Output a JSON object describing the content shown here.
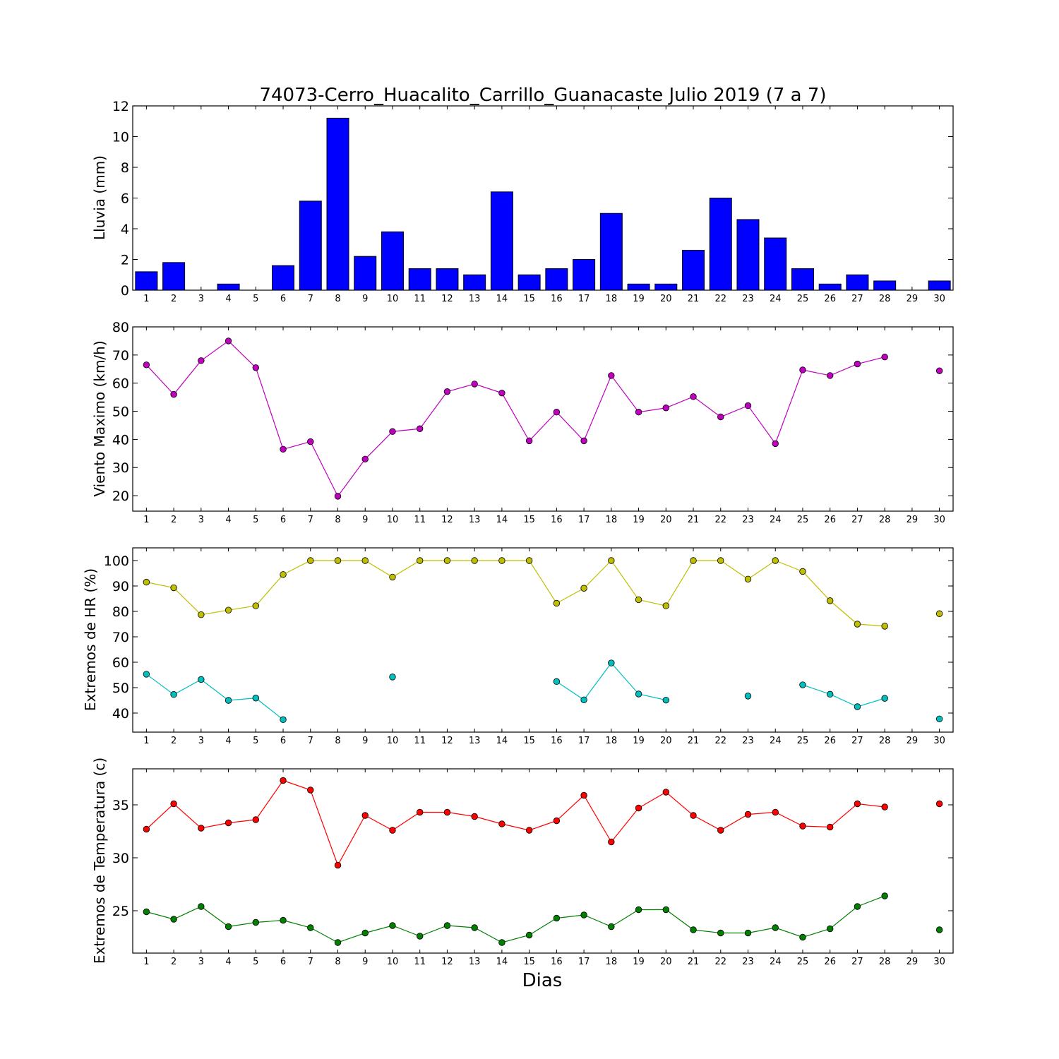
{
  "chart_data": [
    {
      "type": "bar",
      "title": "74073-Cerro_Huacalito_Carrillo_Guanacaste Julio 2019  (7 a 7)",
      "xlabel": "",
      "ylabel": "Lluvia (mm)",
      "categories": [
        "1",
        "2",
        "3",
        "4",
        "5",
        "6",
        "7",
        "8",
        "9",
        "10",
        "11",
        "12",
        "13",
        "14",
        "15",
        "16",
        "17",
        "18",
        "19",
        "20",
        "21",
        "22",
        "23",
        "24",
        "25",
        "26",
        "27",
        "28",
        "29",
        "30"
      ],
      "values": [
        1.2,
        1.8,
        0,
        0.4,
        0,
        1.6,
        5.8,
        11.2,
        2.2,
        3.8,
        1.4,
        1.4,
        1.0,
        6.4,
        1.0,
        1.4,
        2.0,
        5.0,
        0.4,
        0.4,
        2.6,
        6.0,
        4.6,
        3.4,
        1.4,
        0.4,
        1.0,
        0.6,
        0,
        0.6
      ],
      "ylim": [
        0,
        12
      ],
      "yticks": [
        0,
        2,
        4,
        6,
        8,
        10,
        12
      ],
      "colors": {
        "bar": "#0000ff"
      },
      "grid": false
    },
    {
      "type": "line",
      "xlabel": "",
      "ylabel": "Viento Maximo (km/h)",
      "x": [
        1,
        2,
        3,
        4,
        5,
        6,
        7,
        8,
        9,
        10,
        11,
        12,
        13,
        14,
        15,
        16,
        17,
        18,
        19,
        20,
        21,
        22,
        23,
        24,
        25,
        26,
        27,
        28,
        29,
        30
      ],
      "series": [
        {
          "color": "#bf00bf",
          "values": [
            66.5,
            56,
            68,
            75,
            65.5,
            36.5,
            39.2,
            19.8,
            33,
            42.8,
            43.8,
            57,
            59.7,
            56.5,
            39.5,
            49.7,
            39.5,
            62.7,
            49.7,
            51.2,
            55.2,
            48,
            52,
            38.5,
            64.7,
            62.7,
            66.8,
            69.3,
            null,
            64.4
          ]
        }
      ],
      "ylim": [
        14.5,
        80
      ],
      "yticks": [
        20,
        30,
        40,
        50,
        60,
        70,
        80
      ],
      "grid": false
    },
    {
      "type": "line",
      "xlabel": "",
      "ylabel": "Extremos de HR (%)",
      "x": [
        1,
        2,
        3,
        4,
        5,
        6,
        7,
        8,
        9,
        10,
        11,
        12,
        13,
        14,
        15,
        16,
        17,
        18,
        19,
        20,
        21,
        22,
        23,
        24,
        25,
        26,
        27,
        28,
        29,
        30
      ],
      "series": [
        {
          "color": "#bfbf00",
          "values": [
            91.5,
            89.3,
            78.7,
            80.5,
            82.2,
            94.5,
            100,
            100,
            100,
            93.5,
            100,
            100,
            100,
            100,
            100,
            83.2,
            89.1,
            100,
            84.6,
            82.2,
            100,
            100,
            92.7,
            100,
            95.7,
            84.2,
            75,
            74.2,
            null,
            79.1
          ]
        },
        {
          "color": "#00bfbf",
          "values": [
            55.3,
            47.3,
            53.2,
            45,
            45.9,
            37.4,
            null,
            null,
            null,
            54.2,
            null,
            null,
            null,
            null,
            null,
            52.4,
            45.2,
            59.7,
            47.5,
            45.1,
            null,
            null,
            46.7,
            null,
            51.1,
            47.4,
            42.5,
            45.8,
            null,
            37.7
          ]
        }
      ],
      "ylim": [
        32.5,
        105
      ],
      "yticks": [
        40,
        50,
        60,
        70,
        80,
        90,
        100
      ],
      "grid": false
    },
    {
      "type": "line",
      "xlabel": "Dias",
      "ylabel": "Extremos de Temperatura (c)",
      "x": [
        1,
        2,
        3,
        4,
        5,
        6,
        7,
        8,
        9,
        10,
        11,
        12,
        13,
        14,
        15,
        16,
        17,
        18,
        19,
        20,
        21,
        22,
        23,
        24,
        25,
        26,
        27,
        28,
        29,
        30
      ],
      "series": [
        {
          "color": "#ff0000",
          "values": [
            32.7,
            35.1,
            32.8,
            33.3,
            33.6,
            37.3,
            36.4,
            29.3,
            34,
            32.6,
            34.3,
            34.3,
            33.9,
            33.2,
            32.6,
            33.5,
            35.9,
            31.5,
            34.7,
            36.2,
            34,
            32.6,
            34.1,
            34.3,
            33,
            32.9,
            35.1,
            34.8,
            null,
            35.1
          ]
        },
        {
          "color": "#007f00",
          "values": [
            24.9,
            24.2,
            25.4,
            23.5,
            23.9,
            24.1,
            23.4,
            22,
            22.9,
            23.6,
            22.6,
            23.6,
            23.4,
            22,
            22.7,
            24.3,
            24.6,
            23.5,
            25.1,
            25.1,
            23.2,
            22.9,
            22.9,
            23.4,
            22.5,
            23.3,
            25.4,
            26.4,
            null,
            23.2
          ]
        }
      ],
      "ylim": [
        21,
        38.4
      ],
      "yticks": [
        25,
        30,
        35
      ],
      "grid": false
    }
  ]
}
